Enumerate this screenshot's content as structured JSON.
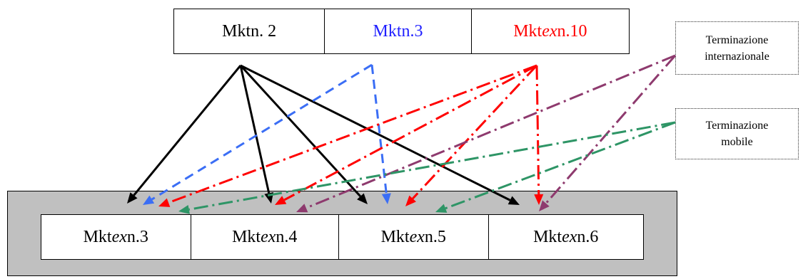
{
  "top_markets": [
    {
      "prefix": "Mkt ",
      "italic": "",
      "suffix": "n. 2",
      "color": "#000000"
    },
    {
      "prefix": "Mkt ",
      "italic": "",
      "suffix": "n.3",
      "color": "#1f1fff"
    },
    {
      "prefix": "Mkt ",
      "italic": "ex",
      "suffix": " n.10",
      "color": "#ff0000"
    }
  ],
  "bottom_markets": [
    {
      "prefix": "Mkt ",
      "italic": "ex",
      "suffix": " n.3"
    },
    {
      "prefix": "Mkt ",
      "italic": "ex",
      "suffix": " n.4"
    },
    {
      "prefix": "Mkt ",
      "italic": "ex",
      "suffix": " n.5"
    },
    {
      "prefix": "Mkt ",
      "italic": "ex",
      "suffix": " n.6"
    }
  ],
  "notes": {
    "international": {
      "line1": "Terminazione",
      "line2": "internazionale"
    },
    "mobile": {
      "line1": "Terminazione",
      "line2": "mobile"
    }
  },
  "colors": {
    "mkt2_arrows": "#000000",
    "mkt3_arrows": "#3b6ef5",
    "mktex10_arrows": "#ff0000",
    "term_int_arrows": "#8e3a6e",
    "term_mob_arrows": "#2e9566",
    "panel": "#c0c0c0"
  },
  "connections": [
    {
      "source": "Mkt n. 2",
      "style": "solid",
      "targets": [
        "Mkt ex n.3",
        "Mkt ex n.4",
        "Mkt ex n.5",
        "Mkt ex n.6"
      ]
    },
    {
      "source": "Mkt n.3",
      "style": "dashed",
      "targets": [
        "Mkt ex n.3",
        "Mkt ex n.5"
      ]
    },
    {
      "source": "Mkt ex n.10",
      "style": "dash-dot",
      "targets": [
        "Mkt ex n.3",
        "Mkt ex n.4",
        "Mkt ex n.5",
        "Mkt ex n.6"
      ]
    },
    {
      "source": "Terminazione internazionale",
      "style": "dash-dot",
      "targets": [
        "Mkt ex n.4",
        "Mkt ex n.6"
      ]
    },
    {
      "source": "Terminazione mobile",
      "style": "dash-dot",
      "targets": [
        "Mkt ex n.3",
        "Mkt ex n.5"
      ]
    }
  ]
}
